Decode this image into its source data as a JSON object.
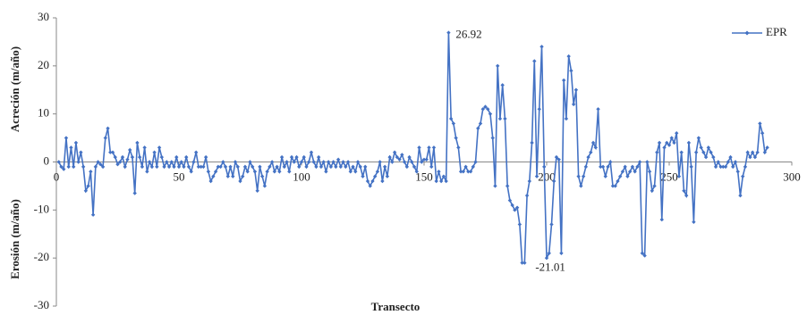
{
  "chart_data": {
    "type": "line",
    "y_label": [
      "Acreción (m/año)",
      "Erosión (m/año)"
    ],
    "x_label": "Transecto",
    "annotations": [
      "26.92",
      "-21.01"
    ],
    "xlim": [
      0,
      300
    ],
    "xticks": [
      0,
      50,
      100,
      150,
      200,
      250,
      300
    ],
    "ylim": [
      -30,
      30
    ],
    "yticks": [
      -30,
      -20,
      -10,
      0,
      10,
      20,
      30
    ],
    "grid": false,
    "legend": "top-right",
    "x": [
      1,
      2,
      3,
      4,
      5,
      6,
      7,
      8,
      9,
      10,
      11,
      12,
      13,
      14,
      15,
      16,
      17,
      18,
      19,
      20,
      21,
      22,
      23,
      24,
      25,
      26,
      27,
      28,
      29,
      30,
      31,
      32,
      33,
      34,
      35,
      36,
      37,
      38,
      39,
      40,
      41,
      42,
      43,
      44,
      45,
      46,
      47,
      48,
      49,
      50,
      51,
      52,
      53,
      54,
      55,
      56,
      57,
      58,
      59,
      60,
      61,
      62,
      63,
      64,
      65,
      66,
      67,
      68,
      69,
      70,
      71,
      72,
      73,
      74,
      75,
      76,
      77,
      78,
      79,
      80,
      81,
      82,
      83,
      84,
      85,
      86,
      87,
      88,
      89,
      90,
      91,
      92,
      93,
      94,
      95,
      96,
      97,
      98,
      99,
      100,
      101,
      102,
      103,
      104,
      105,
      106,
      107,
      108,
      109,
      110,
      111,
      112,
      113,
      114,
      115,
      116,
      117,
      118,
      119,
      120,
      121,
      122,
      123,
      124,
      125,
      126,
      127,
      128,
      129,
      130,
      131,
      132,
      133,
      134,
      135,
      136,
      137,
      138,
      139,
      140,
      141,
      142,
      143,
      144,
      145,
      146,
      147,
      148,
      149,
      150,
      151,
      152,
      153,
      154,
      155,
      156,
      157,
      158,
      159,
      160,
      161,
      162,
      163,
      164,
      165,
      166,
      167,
      168,
      169,
      170,
      171,
      172,
      173,
      174,
      175,
      176,
      177,
      178,
      179,
      180,
      181,
      182,
      183,
      184,
      185,
      186,
      187,
      188,
      189,
      190,
      191,
      192,
      193,
      194,
      195,
      196,
      197,
      198,
      199,
      200,
      201,
      202,
      203,
      204,
      205,
      206,
      207,
      208,
      209,
      210,
      211,
      212,
      213,
      214,
      215,
      216,
      217,
      218,
      219,
      220,
      221,
      222,
      223,
      224,
      225,
      226,
      227,
      228,
      229,
      230,
      231,
      232,
      233,
      234,
      235,
      236,
      237,
      238,
      239,
      240,
      241,
      242,
      243,
      244,
      245,
      246,
      247,
      248,
      249,
      250,
      251,
      252,
      253,
      254,
      255,
      256,
      257,
      258,
      259,
      260,
      261,
      262,
      263,
      264,
      265,
      266,
      267,
      268,
      269,
      270,
      271,
      272,
      273,
      274,
      275,
      276,
      277,
      278,
      279,
      280,
      281,
      282,
      283,
      284,
      285,
      286,
      287,
      288,
      289,
      290
    ],
    "series": [
      {
        "name": "EPR",
        "color": "#4472c4",
        "values": [
          0,
          -1,
          -1.5,
          5,
          -1,
          3,
          -1,
          4,
          0,
          2,
          -1,
          -6,
          -5,
          -2,
          -11,
          -1,
          0,
          -0.5,
          -1,
          5,
          7,
          2,
          2,
          1,
          -0.5,
          0,
          1,
          -1,
          0.5,
          2.5,
          1,
          -6.5,
          4,
          1,
          -1,
          3,
          -2,
          0,
          -1,
          2,
          -1,
          3,
          1,
          -1,
          0,
          -1,
          0,
          -1,
          1,
          -1,
          0,
          -1,
          1,
          -1,
          -2,
          0,
          2,
          -1,
          -1,
          -1,
          1,
          -2,
          -4,
          -3,
          -2,
          -1,
          -1,
          0,
          -1,
          -3,
          -1,
          -3,
          0,
          -1,
          -4,
          -3,
          -1,
          -2,
          0,
          -1,
          -2,
          -6,
          -1,
          -3,
          -5,
          -2,
          -1,
          0,
          -2,
          -1,
          -2,
          1,
          -1,
          0,
          -2,
          1,
          0,
          1,
          -1,
          0,
          1,
          -1,
          0,
          2,
          0,
          -1,
          1,
          -1,
          0,
          -2,
          0,
          -1,
          0,
          -1,
          0.5,
          -1,
          0,
          -1,
          0,
          -2,
          -1,
          -2,
          0,
          -1,
          -3,
          -1,
          -4,
          -5,
          -4,
          -3,
          -2,
          0,
          -4,
          -1,
          -3,
          1,
          0,
          2,
          1,
          0.5,
          1.5,
          0,
          -1,
          1,
          0,
          -1,
          -2,
          3,
          0,
          0.5,
          0.5,
          3,
          -1,
          3,
          -4,
          -2,
          -4,
          -3,
          -4,
          26.92,
          9,
          8,
          5,
          3,
          -2,
          -2,
          -1,
          -2,
          -2,
          -1,
          0,
          7,
          8,
          11,
          11.5,
          11,
          10,
          5,
          -5,
          20,
          9,
          16,
          9,
          -5,
          -8,
          -9,
          -10,
          -9.5,
          -13,
          -21,
          -21.01,
          -7,
          -4,
          4,
          21,
          -3,
          11,
          24,
          -1,
          -20,
          -19,
          -13,
          -4,
          1,
          0.5,
          -19,
          17,
          9,
          22,
          19,
          12,
          15,
          -3,
          -5,
          -3,
          -1,
          1,
          2,
          4,
          3,
          11,
          -1,
          -1,
          -3,
          -1,
          0,
          -5,
          -5,
          -4,
          -3,
          -2,
          -1,
          -3,
          -2,
          -1,
          -2,
          -1,
          0,
          -19,
          -19.5,
          0,
          -2,
          -6,
          -5,
          2,
          4,
          -12,
          3,
          4,
          3.5,
          5,
          4,
          6,
          -3,
          2,
          -6,
          -7,
          4,
          -1,
          -12.5,
          2,
          5,
          3,
          2,
          1,
          3,
          2,
          1,
          -1,
          0,
          -1,
          -1,
          -1,
          0,
          1,
          -1,
          0,
          -2,
          -7,
          -3,
          -1,
          2,
          1,
          2,
          1,
          2,
          8,
          6,
          2,
          3
        ]
      }
    ]
  }
}
